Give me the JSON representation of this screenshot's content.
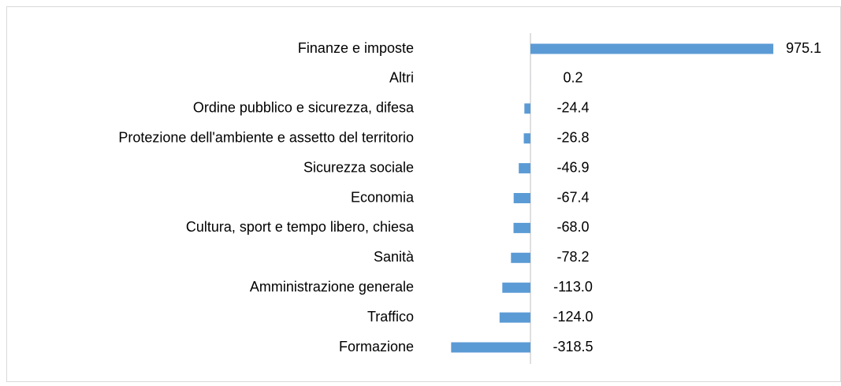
{
  "chart_data": {
    "type": "barh",
    "categories": [
      "Finanze e imposte",
      "Altri",
      "Ordine pubblico e sicurezza, difesa",
      "Protezione dell'ambiente e assetto del territorio",
      "Sicurezza sociale",
      "Economia",
      "Cultura, sport e tempo libero, chiesa",
      "Sanità",
      "Amministrazione generale",
      "Traffico",
      "Formazione"
    ],
    "values": [
      975.1,
      0.2,
      -24.4,
      -26.8,
      -46.9,
      -67.4,
      -68.0,
      -78.2,
      -113.0,
      -124.0,
      -318.5
    ],
    "value_labels": [
      "975.1",
      "0.2",
      "-24.4",
      "-26.8",
      "-46.9",
      "-67.4",
      "-68.0",
      "-78.2",
      "-113.0",
      "-124.0",
      "-318.5"
    ],
    "color": "#5b9bd5",
    "xlim": [
      -500,
      1000
    ]
  }
}
